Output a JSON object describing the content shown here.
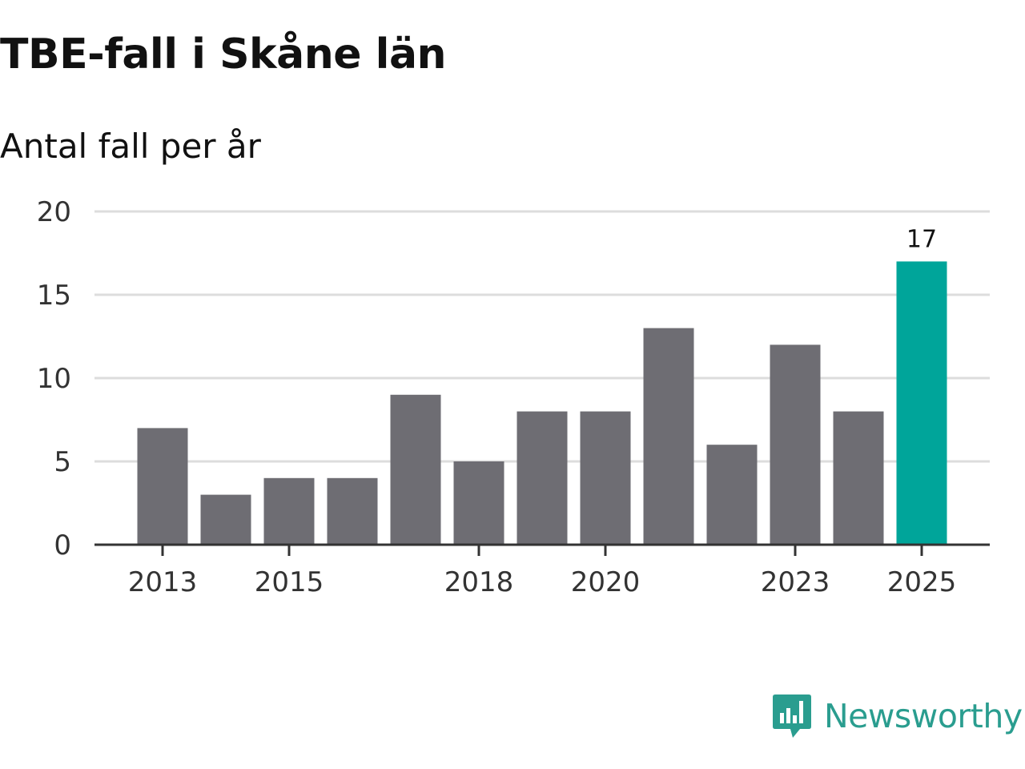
{
  "chart_data": {
    "type": "bar",
    "title": "TBE-fall i Skåne län",
    "subtitle": "Antal fall per år",
    "categories": [
      "2013",
      "2014",
      "2015",
      "2016",
      "2017",
      "2018",
      "2019",
      "2020",
      "2021",
      "2022",
      "2023",
      "2024",
      "2025"
    ],
    "values": [
      7,
      3,
      4,
      4,
      9,
      5,
      8,
      8,
      13,
      6,
      12,
      8,
      17
    ],
    "xtick_labels": [
      "2013",
      "2015",
      "2018",
      "2020",
      "2023",
      "2025"
    ],
    "yticks": [
      0,
      5,
      10,
      15,
      20
    ],
    "ylim": [
      0,
      20
    ],
    "xlabel": "",
    "ylabel": "",
    "grid": true,
    "highlight": {
      "category": "2025",
      "label": "17"
    },
    "colors": {
      "bar": "#6e6d73",
      "highlight": "#00a59a",
      "grid": "#dddddd",
      "axis": "#333333"
    }
  },
  "brand": {
    "name": "Newsworthy",
    "icon": "newsworthy-logo-icon",
    "color": "#2a9d8f"
  }
}
